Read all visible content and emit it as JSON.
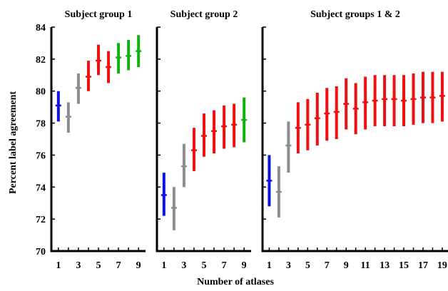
{
  "figure": {
    "xlabel": "Number of atlases",
    "ylabel": "Percent label agreement"
  },
  "chart_data": [
    {
      "type": "errorbar",
      "title": "Subject group 1",
      "ylim": [
        70,
        84
      ],
      "yticks": [
        70,
        72,
        74,
        76,
        78,
        80,
        82,
        84
      ],
      "xlim": [
        0.3,
        9.7
      ],
      "xticks": [
        1,
        3,
        5,
        7,
        9
      ],
      "points": [
        {
          "x": 1,
          "mean": 79.1,
          "low": 78.1,
          "high": 80.0,
          "color": "#1010e0"
        },
        {
          "x": 2,
          "mean": 78.4,
          "low": 77.4,
          "high": 79.3,
          "color": "#8c8c8c"
        },
        {
          "x": 3,
          "mean": 80.2,
          "low": 79.2,
          "high": 81.1,
          "color": "#8c8c8c"
        },
        {
          "x": 4,
          "mean": 80.9,
          "low": 80.0,
          "high": 81.9,
          "color": "#ee1010"
        },
        {
          "x": 5,
          "mean": 81.9,
          "low": 81.0,
          "high": 82.9,
          "color": "#ee1010"
        },
        {
          "x": 6,
          "mean": 81.5,
          "low": 80.5,
          "high": 82.5,
          "color": "#ee1010"
        },
        {
          "x": 7,
          "mean": 82.1,
          "low": 81.1,
          "high": 83.0,
          "color": "#12b012"
        },
        {
          "x": 8,
          "mean": 82.2,
          "low": 81.3,
          "high": 83.2,
          "color": "#12b012"
        },
        {
          "x": 9,
          "mean": 82.5,
          "low": 81.5,
          "high": 83.5,
          "color": "#12b012"
        }
      ]
    },
    {
      "type": "errorbar",
      "title": "Subject group 2",
      "ylim": [
        70,
        84
      ],
      "yticks": [
        70,
        72,
        74,
        76,
        78,
        80,
        82,
        84
      ],
      "xlim": [
        0.3,
        9.7
      ],
      "xticks": [
        1,
        3,
        5,
        7,
        9
      ],
      "points": [
        {
          "x": 1,
          "mean": 73.5,
          "low": 72.2,
          "high": 74.9,
          "color": "#1010e0"
        },
        {
          "x": 2,
          "mean": 72.7,
          "low": 71.3,
          "high": 74.0,
          "color": "#8c8c8c"
        },
        {
          "x": 3,
          "mean": 75.3,
          "low": 74.0,
          "high": 76.7,
          "color": "#8c8c8c"
        },
        {
          "x": 4,
          "mean": 76.3,
          "low": 75.0,
          "high": 77.7,
          "color": "#ee1010"
        },
        {
          "x": 5,
          "mean": 77.2,
          "low": 75.9,
          "high": 78.6,
          "color": "#ee1010"
        },
        {
          "x": 6,
          "mean": 77.5,
          "low": 76.1,
          "high": 78.8,
          "color": "#ee1010"
        },
        {
          "x": 7,
          "mean": 77.8,
          "low": 76.4,
          "high": 79.1,
          "color": "#ee1010"
        },
        {
          "x": 8,
          "mean": 77.9,
          "low": 76.5,
          "high": 79.2,
          "color": "#ee1010"
        },
        {
          "x": 9,
          "mean": 78.2,
          "low": 76.8,
          "high": 79.6,
          "color": "#12b012"
        }
      ]
    },
    {
      "type": "errorbar",
      "title": "Subject groups 1 & 2",
      "ylim": [
        70,
        84
      ],
      "yticks": [
        70,
        72,
        74,
        76,
        78,
        80,
        82,
        84
      ],
      "xlim": [
        0.3,
        19.6
      ],
      "xticks": [
        1,
        3,
        5,
        7,
        9,
        11,
        13,
        15,
        17,
        19
      ],
      "points": [
        {
          "x": 1,
          "mean": 74.4,
          "low": 72.8,
          "high": 76.0,
          "color": "#1010e0"
        },
        {
          "x": 2,
          "mean": 73.7,
          "low": 72.1,
          "high": 75.3,
          "color": "#8c8c8c"
        },
        {
          "x": 3,
          "mean": 76.6,
          "low": 74.9,
          "high": 78.1,
          "color": "#8c8c8c"
        },
        {
          "x": 4,
          "mean": 77.7,
          "low": 76.1,
          "high": 79.3,
          "color": "#ee1010"
        },
        {
          "x": 5,
          "mean": 77.9,
          "low": 76.3,
          "high": 79.5,
          "color": "#ee1010"
        },
        {
          "x": 6,
          "mean": 78.3,
          "low": 76.6,
          "high": 79.9,
          "color": "#ee1010"
        },
        {
          "x": 7,
          "mean": 78.6,
          "low": 76.9,
          "high": 80.2,
          "color": "#ee1010"
        },
        {
          "x": 8,
          "mean": 78.7,
          "low": 77.0,
          "high": 80.3,
          "color": "#ee1010"
        },
        {
          "x": 9,
          "mean": 79.2,
          "low": 77.6,
          "high": 80.8,
          "color": "#ee1010"
        },
        {
          "x": 10,
          "mean": 78.9,
          "low": 77.3,
          "high": 80.5,
          "color": "#ee1010"
        },
        {
          "x": 11,
          "mean": 79.3,
          "low": 77.6,
          "high": 80.9,
          "color": "#ee1010"
        },
        {
          "x": 12,
          "mean": 79.4,
          "low": 77.8,
          "high": 81.0,
          "color": "#ee1010"
        },
        {
          "x": 13,
          "mean": 79.5,
          "low": 77.8,
          "high": 81.0,
          "color": "#ee1010"
        },
        {
          "x": 14,
          "mean": 79.5,
          "low": 77.8,
          "high": 81.0,
          "color": "#ee1010"
        },
        {
          "x": 15,
          "mean": 79.4,
          "low": 77.8,
          "high": 81.0,
          "color": "#ee1010"
        },
        {
          "x": 16,
          "mean": 79.5,
          "low": 77.9,
          "high": 81.1,
          "color": "#ee1010"
        },
        {
          "x": 17,
          "mean": 79.6,
          "low": 78.0,
          "high": 81.2,
          "color": "#ee1010"
        },
        {
          "x": 18,
          "mean": 79.6,
          "low": 78.0,
          "high": 81.2,
          "color": "#ee1010"
        },
        {
          "x": 19,
          "mean": 79.7,
          "low": 78.1,
          "high": 81.2,
          "color": "#ee1010"
        }
      ]
    }
  ]
}
